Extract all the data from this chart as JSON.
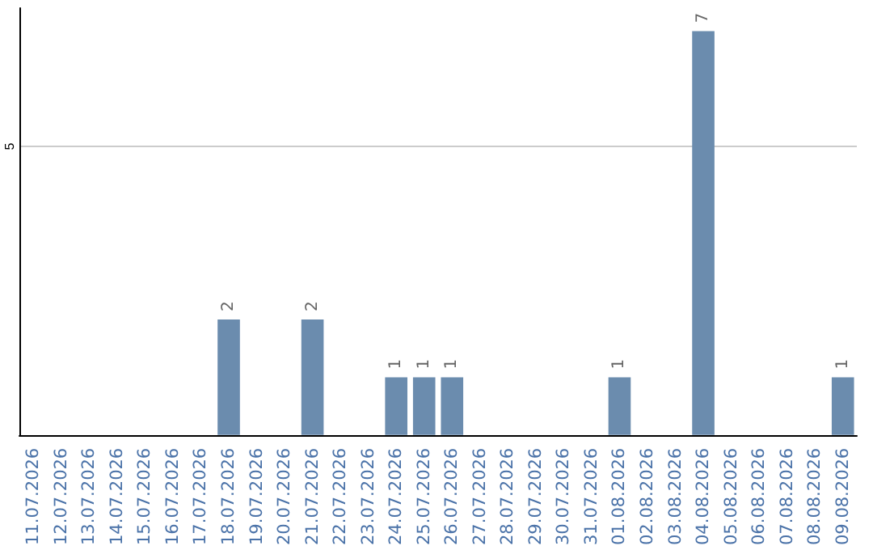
{
  "chart_data": {
    "type": "bar",
    "categories": [
      "11.07.2026",
      "12.07.2026",
      "13.07.2026",
      "14.07.2026",
      "15.07.2026",
      "16.07.2026",
      "17.07.2026",
      "18.07.2026",
      "19.07.2026",
      "20.07.2026",
      "21.07.2026",
      "22.07.2026",
      "23.07.2026",
      "24.07.2026",
      "25.07.2026",
      "26.07.2026",
      "27.07.2026",
      "28.07.2026",
      "29.07.2026",
      "30.07.2026",
      "31.07.2026",
      "01.08.2026",
      "02.08.2026",
      "03.08.2026",
      "04.08.2026",
      "05.08.2026",
      "06.08.2026",
      "07.08.2026",
      "08.08.2026",
      "09.08.2026"
    ],
    "values": [
      0,
      0,
      0,
      0,
      0,
      0,
      0,
      2,
      0,
      0,
      2,
      0,
      0,
      1,
      1,
      1,
      0,
      0,
      0,
      0,
      0,
      1,
      0,
      0,
      7,
      0,
      0,
      0,
      0,
      1
    ],
    "value_labels": [
      null,
      null,
      null,
      null,
      null,
      null,
      null,
      "2",
      null,
      null,
      "2",
      null,
      null,
      "1",
      "1",
      "1",
      null,
      null,
      null,
      null,
      null,
      "1",
      null,
      null,
      "7",
      null,
      null,
      null,
      null,
      "1"
    ],
    "color": "#6b8cae",
    "ylim": [
      0,
      7.4
    ],
    "yticks": [
      5
    ],
    "grid": "y"
  }
}
